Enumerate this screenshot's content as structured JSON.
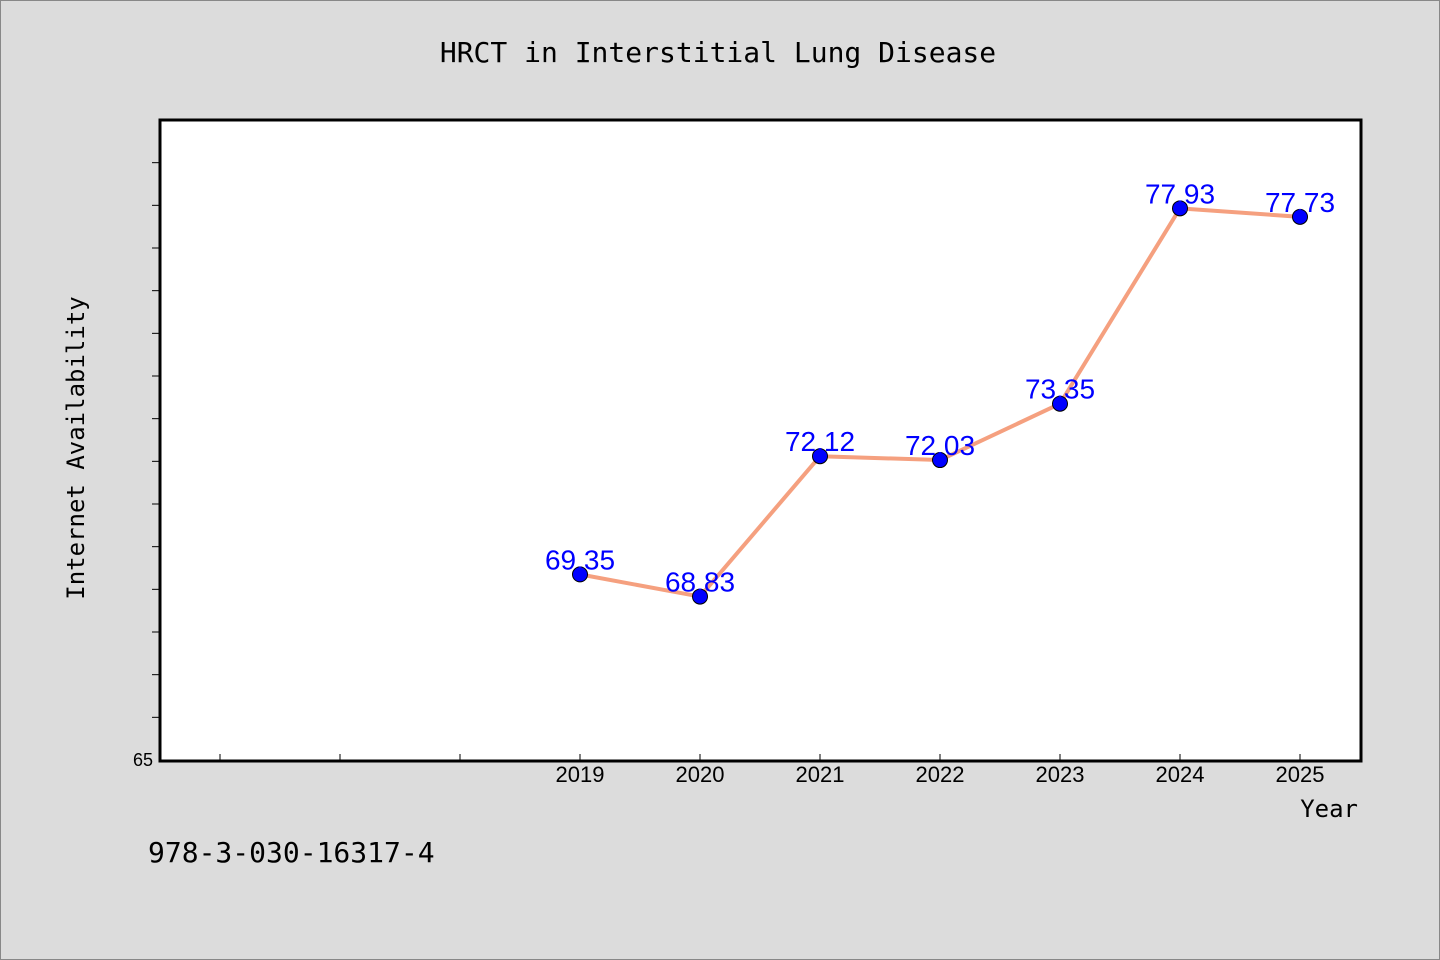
{
  "chart_data": {
    "type": "line",
    "title": "HRCT in Interstitial Lung Disease",
    "xlabel": "Year",
    "ylabel": "Internet Availability",
    "categories": [
      "2019",
      "2020",
      "2021",
      "2022",
      "2023",
      "2024",
      "2025"
    ],
    "x_slots": 10,
    "values": [
      69.35,
      68.83,
      72.12,
      72.03,
      73.35,
      77.93,
      77.73
    ],
    "value_labels": [
      "69.35",
      "68.83",
      "72.12",
      "72.03",
      "73.35",
      "77.93",
      "77.73"
    ],
    "ylim": [
      65,
      80
    ],
    "ytick_labels": [
      "65"
    ],
    "grid": false,
    "colors": {
      "line": "#f5a07f",
      "marker": "#0000ff",
      "label": "#0000ff",
      "background": "#dcdcdc",
      "plot_area": "#ffffff"
    }
  },
  "footer": {
    "isbn": "978-3-030-16317-4"
  }
}
